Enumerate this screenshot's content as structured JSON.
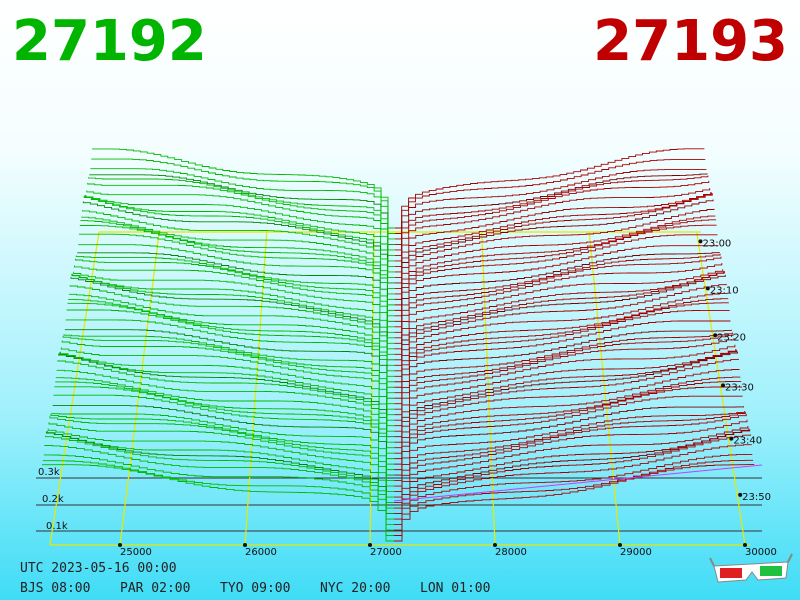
{
  "header": {
    "bid": "27192",
    "ask": "27193"
  },
  "price_axis": [
    "25000",
    "26000",
    "27000",
    "28000",
    "29000",
    "30000"
  ],
  "time_axis": [
    "23:00",
    "23:10",
    "23:20",
    "23:30",
    "23:40",
    "23:50"
  ],
  "depth_axis": [
    "0.3k",
    "0.2k",
    "0.1k"
  ],
  "footer": {
    "utc": "UTC 2023-05-16 00:00",
    "cities": [
      "BJS 08:00",
      "PAR 02:00",
      "TYO 09:00",
      "NYC 20:00",
      "LON 01:00"
    ]
  }
}
